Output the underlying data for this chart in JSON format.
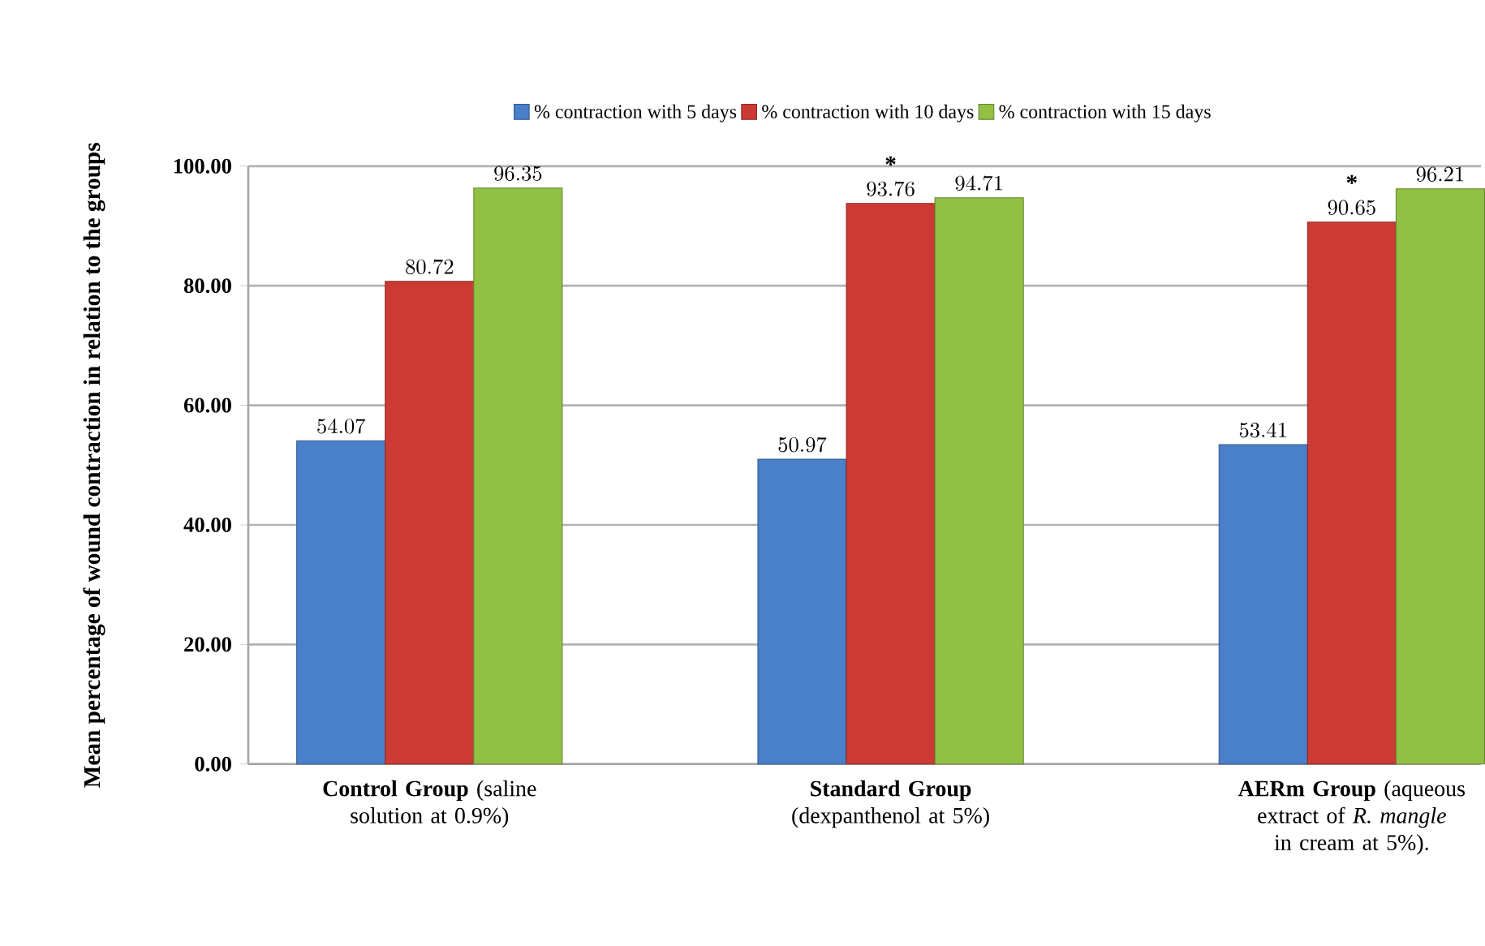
{
  "chart_data": {
    "type": "bar",
    "ylabel": "Mean percentage of wound contraction in relation to the groups",
    "categories": [
      "**Control Group** (saline solution at 0.9%)",
      "**Standard Group** (dexpanthenol at 5%)",
      "**AERm Group** (aqueous extract of *R. mangle* in cream at 5%)."
    ],
    "series": [
      {
        "name": "% contraction with 5 days",
        "color": "#4a7fc9",
        "values": [
          54.07,
          50.97,
          53.41
        ]
      },
      {
        "name": "% contraction with 10 days",
        "color": "#cc3b33",
        "values": [
          80.72,
          93.76,
          90.65
        ]
      },
      {
        "name": "% contraction with 15 days",
        "color": "#92c045",
        "values": [
          96.35,
          94.71,
          96.21
        ]
      }
    ],
    "ylim": [
      0,
      100
    ],
    "yticks": [
      {
        "value": 0,
        "label": "0.00"
      },
      {
        "value": 20,
        "label": "20.00"
      },
      {
        "value": 40,
        "label": "40.00"
      },
      {
        "value": 60,
        "label": "60.00"
      },
      {
        "value": 80,
        "label": "80.00"
      },
      {
        "value": 100,
        "label": "100.00"
      }
    ],
    "grid": "y",
    "legend": "top",
    "data_labels": true,
    "annotations": [
      {
        "text": "*",
        "x": "**Standard Group** (dexpanthenol at 5%)",
        "y": 93.76
      },
      {
        "text": "*",
        "x": "**AERm Group** (aqueous extract of *R. mangle* in cream at 5%).",
        "y": 90.65
      }
    ]
  }
}
